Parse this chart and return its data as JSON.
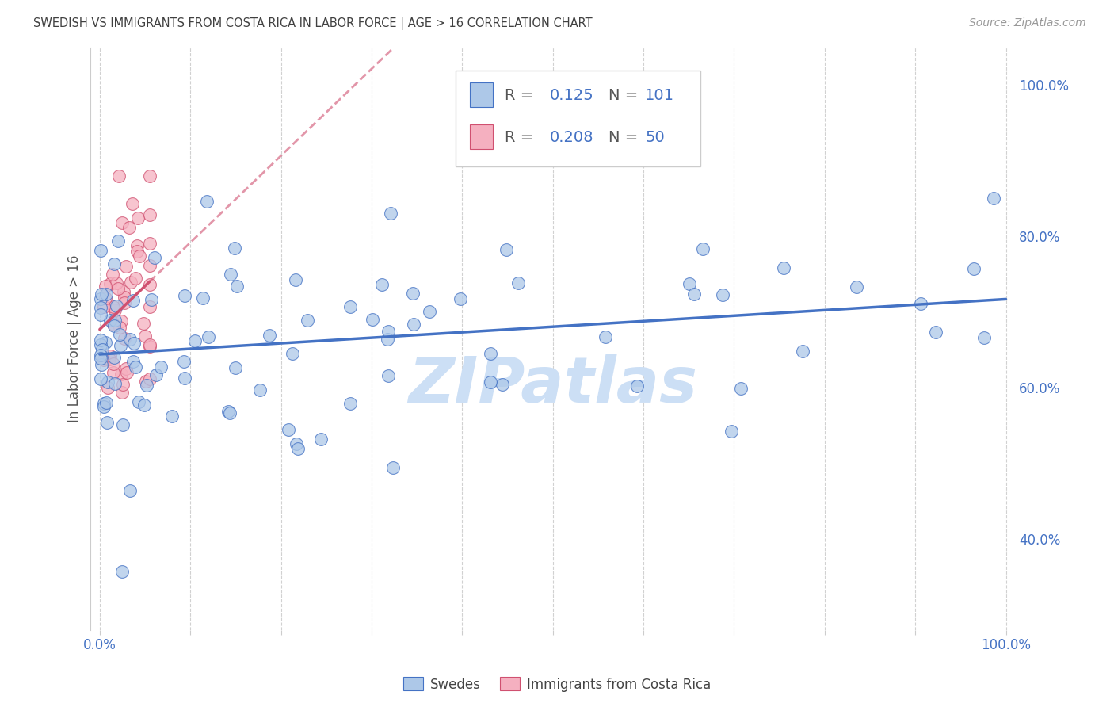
{
  "title": "SWEDISH VS IMMIGRANTS FROM COSTA RICA IN LABOR FORCE | AGE > 16 CORRELATION CHART",
  "source": "Source: ZipAtlas.com",
  "ylabel": "In Labor Force | Age > 16",
  "r_swedes": 0.125,
  "n_swedes": 101,
  "r_costa_rica": 0.208,
  "n_costa_rica": 50,
  "swedes_color": "#adc8e8",
  "costa_rica_color": "#f5b0c0",
  "trend_swedes_color": "#4472c4",
  "trend_costa_rica_color": "#d05070",
  "watermark": "ZIPatlas",
  "watermark_color": "#ccdff5",
  "bg_color": "#ffffff",
  "grid_color": "#cccccc",
  "axis_label_color": "#4472c4",
  "title_color": "#404040",
  "xlim": [
    0.0,
    1.0
  ],
  "ylim": [
    0.28,
    1.05
  ],
  "yticks": [
    0.4,
    0.6,
    0.8,
    1.0
  ],
  "ytick_labels": [
    "40.0%",
    "60.0%",
    "80.0%",
    "100.0%"
  ],
  "xtick_labels_show": [
    "0.0%",
    "100.0%"
  ],
  "legend_r1": "R =  0.125   N = 101",
  "legend_r2": "R =  0.208   N = 50"
}
